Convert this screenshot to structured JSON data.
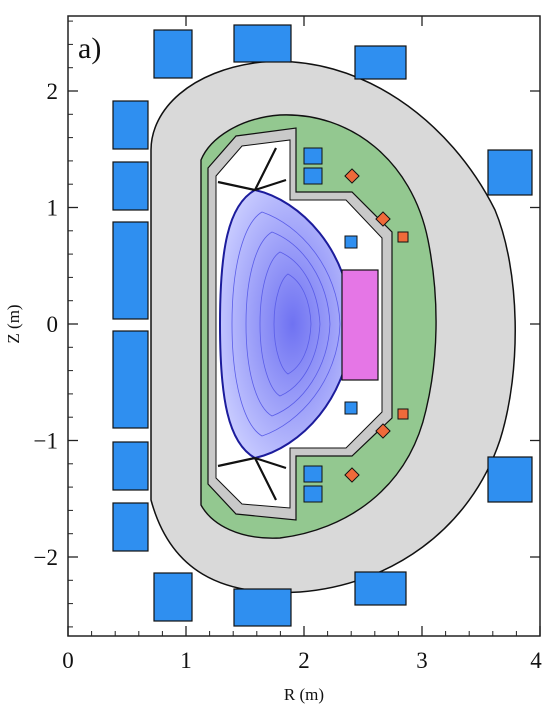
{
  "figure": {
    "panel_label": "a)",
    "x_axis": {
      "label": "R (m)",
      "ticks": [
        "0",
        "1",
        "2",
        "3",
        "4"
      ]
    },
    "y_axis": {
      "label": "Z (m)",
      "ticks": [
        "2",
        "1",
        "0",
        "−1",
        "−2"
      ]
    }
  },
  "colors": {
    "coil": "#2f8ff0",
    "outer_shield": "#d9d9d9",
    "blanket": "#93c890",
    "inner_wall": "#c8c8c8",
    "plasma_start": "#b8bcff",
    "plasma_end": "#6f72f2",
    "separatrix": "#1c1c9c",
    "antenna": "#e576e6",
    "small_coil": "#ef6a3a",
    "divertor_dark": "#111111"
  },
  "components": {
    "pf_coils": "pf-coil",
    "central_solenoid": "central-solenoid",
    "vacuum_vessel": "vacuum-vessel",
    "blanket": "blanket",
    "plasma": "plasma"
  }
}
